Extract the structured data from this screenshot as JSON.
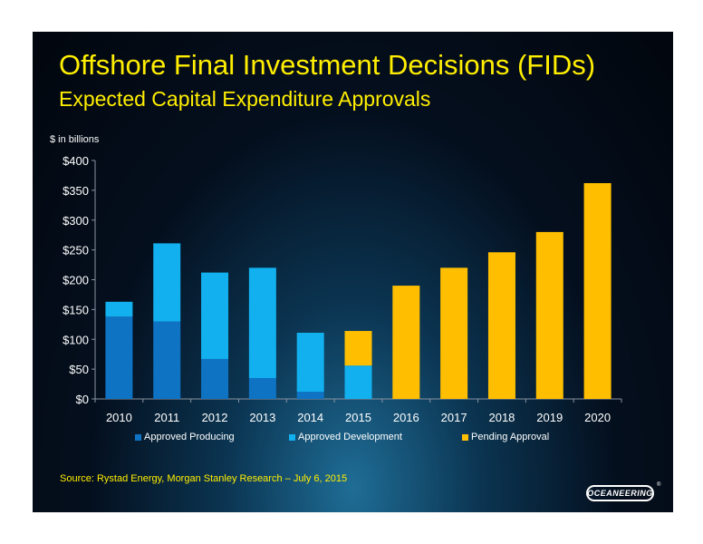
{
  "title": "Offshore Final Investment Decisions (FIDs)",
  "subtitle": "Expected Capital Expenditure Approvals",
  "unit_label": "$ in billions",
  "source": "Source:  Rystad Energy, Morgan Stanley Research – July 6, 2015",
  "logo_text": "OCEANEERING",
  "logo_mark": "®",
  "colors": {
    "approved_producing": "#0f73c4",
    "approved_development": "#12b0ef",
    "pending_approval": "#ffbf00",
    "title": "#ffee00"
  },
  "chart_data": {
    "type": "bar",
    "stacked": true,
    "categories": [
      "2010",
      "2011",
      "2012",
      "2013",
      "2014",
      "2015",
      "2016",
      "2017",
      "2018",
      "2019",
      "2020"
    ],
    "series": [
      {
        "name": "Approved Producing",
        "values": [
          138,
          130,
          67,
          35,
          12,
          0,
          0,
          0,
          0,
          0,
          0
        ]
      },
      {
        "name": "Approved Development",
        "values": [
          25,
          131,
          145,
          185,
          99,
          56,
          0,
          0,
          0,
          0,
          0
        ]
      },
      {
        "name": "Pending Approval",
        "values": [
          0,
          0,
          0,
          0,
          0,
          58,
          190,
          220,
          246,
          280,
          362
        ]
      }
    ],
    "ylim": [
      0,
      400
    ],
    "yticks": [
      0,
      50,
      100,
      150,
      200,
      250,
      300,
      350,
      400
    ],
    "ytick_labels": [
      "$0",
      "$50",
      "$100",
      "$150",
      "$200",
      "$250",
      "$300",
      "$350",
      "$400"
    ],
    "grid": false,
    "legend_position": "bottom"
  }
}
